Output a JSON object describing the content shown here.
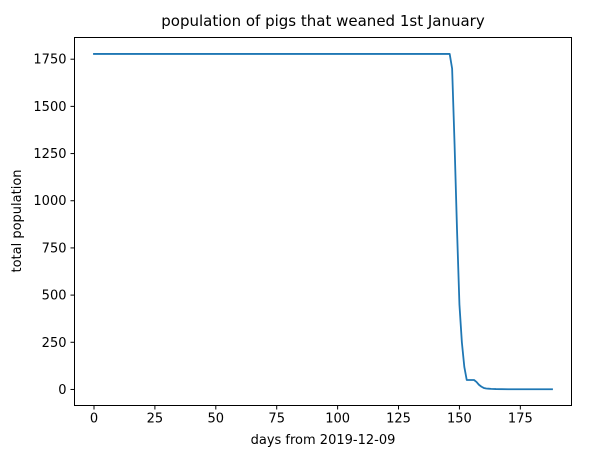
{
  "chart_data": {
    "type": "line",
    "title": "population of pigs that weaned 1st January",
    "xlabel": "days from 2019-12-09",
    "ylabel": "total population",
    "xlim": [
      -8,
      196
    ],
    "ylim": [
      -85,
      1865
    ],
    "x_ticks": [
      0,
      25,
      50,
      75,
      100,
      125,
      150,
      175
    ],
    "y_ticks": [
      0,
      250,
      500,
      750,
      1000,
      1250,
      1500,
      1750
    ],
    "x_tick_labels": [
      "0",
      "25",
      "50",
      "75",
      "100",
      "125",
      "150",
      "175"
    ],
    "y_tick_labels": [
      "0",
      "250",
      "500",
      "750",
      "1000",
      "1250",
      "1500",
      "1750"
    ],
    "grid": false,
    "series": [
      {
        "color": "#1f77b4",
        "x": [
          0,
          25,
          50,
          75,
          100,
          125,
          146,
          147,
          148,
          149,
          150,
          151,
          152,
          153,
          154,
          155,
          156,
          157,
          158,
          159,
          160,
          161,
          162,
          163,
          165,
          170,
          175,
          180,
          185,
          188
        ],
        "y": [
          1778,
          1778,
          1778,
          1778,
          1778,
          1778,
          1778,
          1700,
          1300,
          850,
          450,
          250,
          120,
          50,
          50,
          50,
          50,
          40,
          25,
          15,
          8,
          5,
          4,
          3,
          2,
          1,
          1,
          1,
          1,
          1
        ]
      }
    ]
  }
}
